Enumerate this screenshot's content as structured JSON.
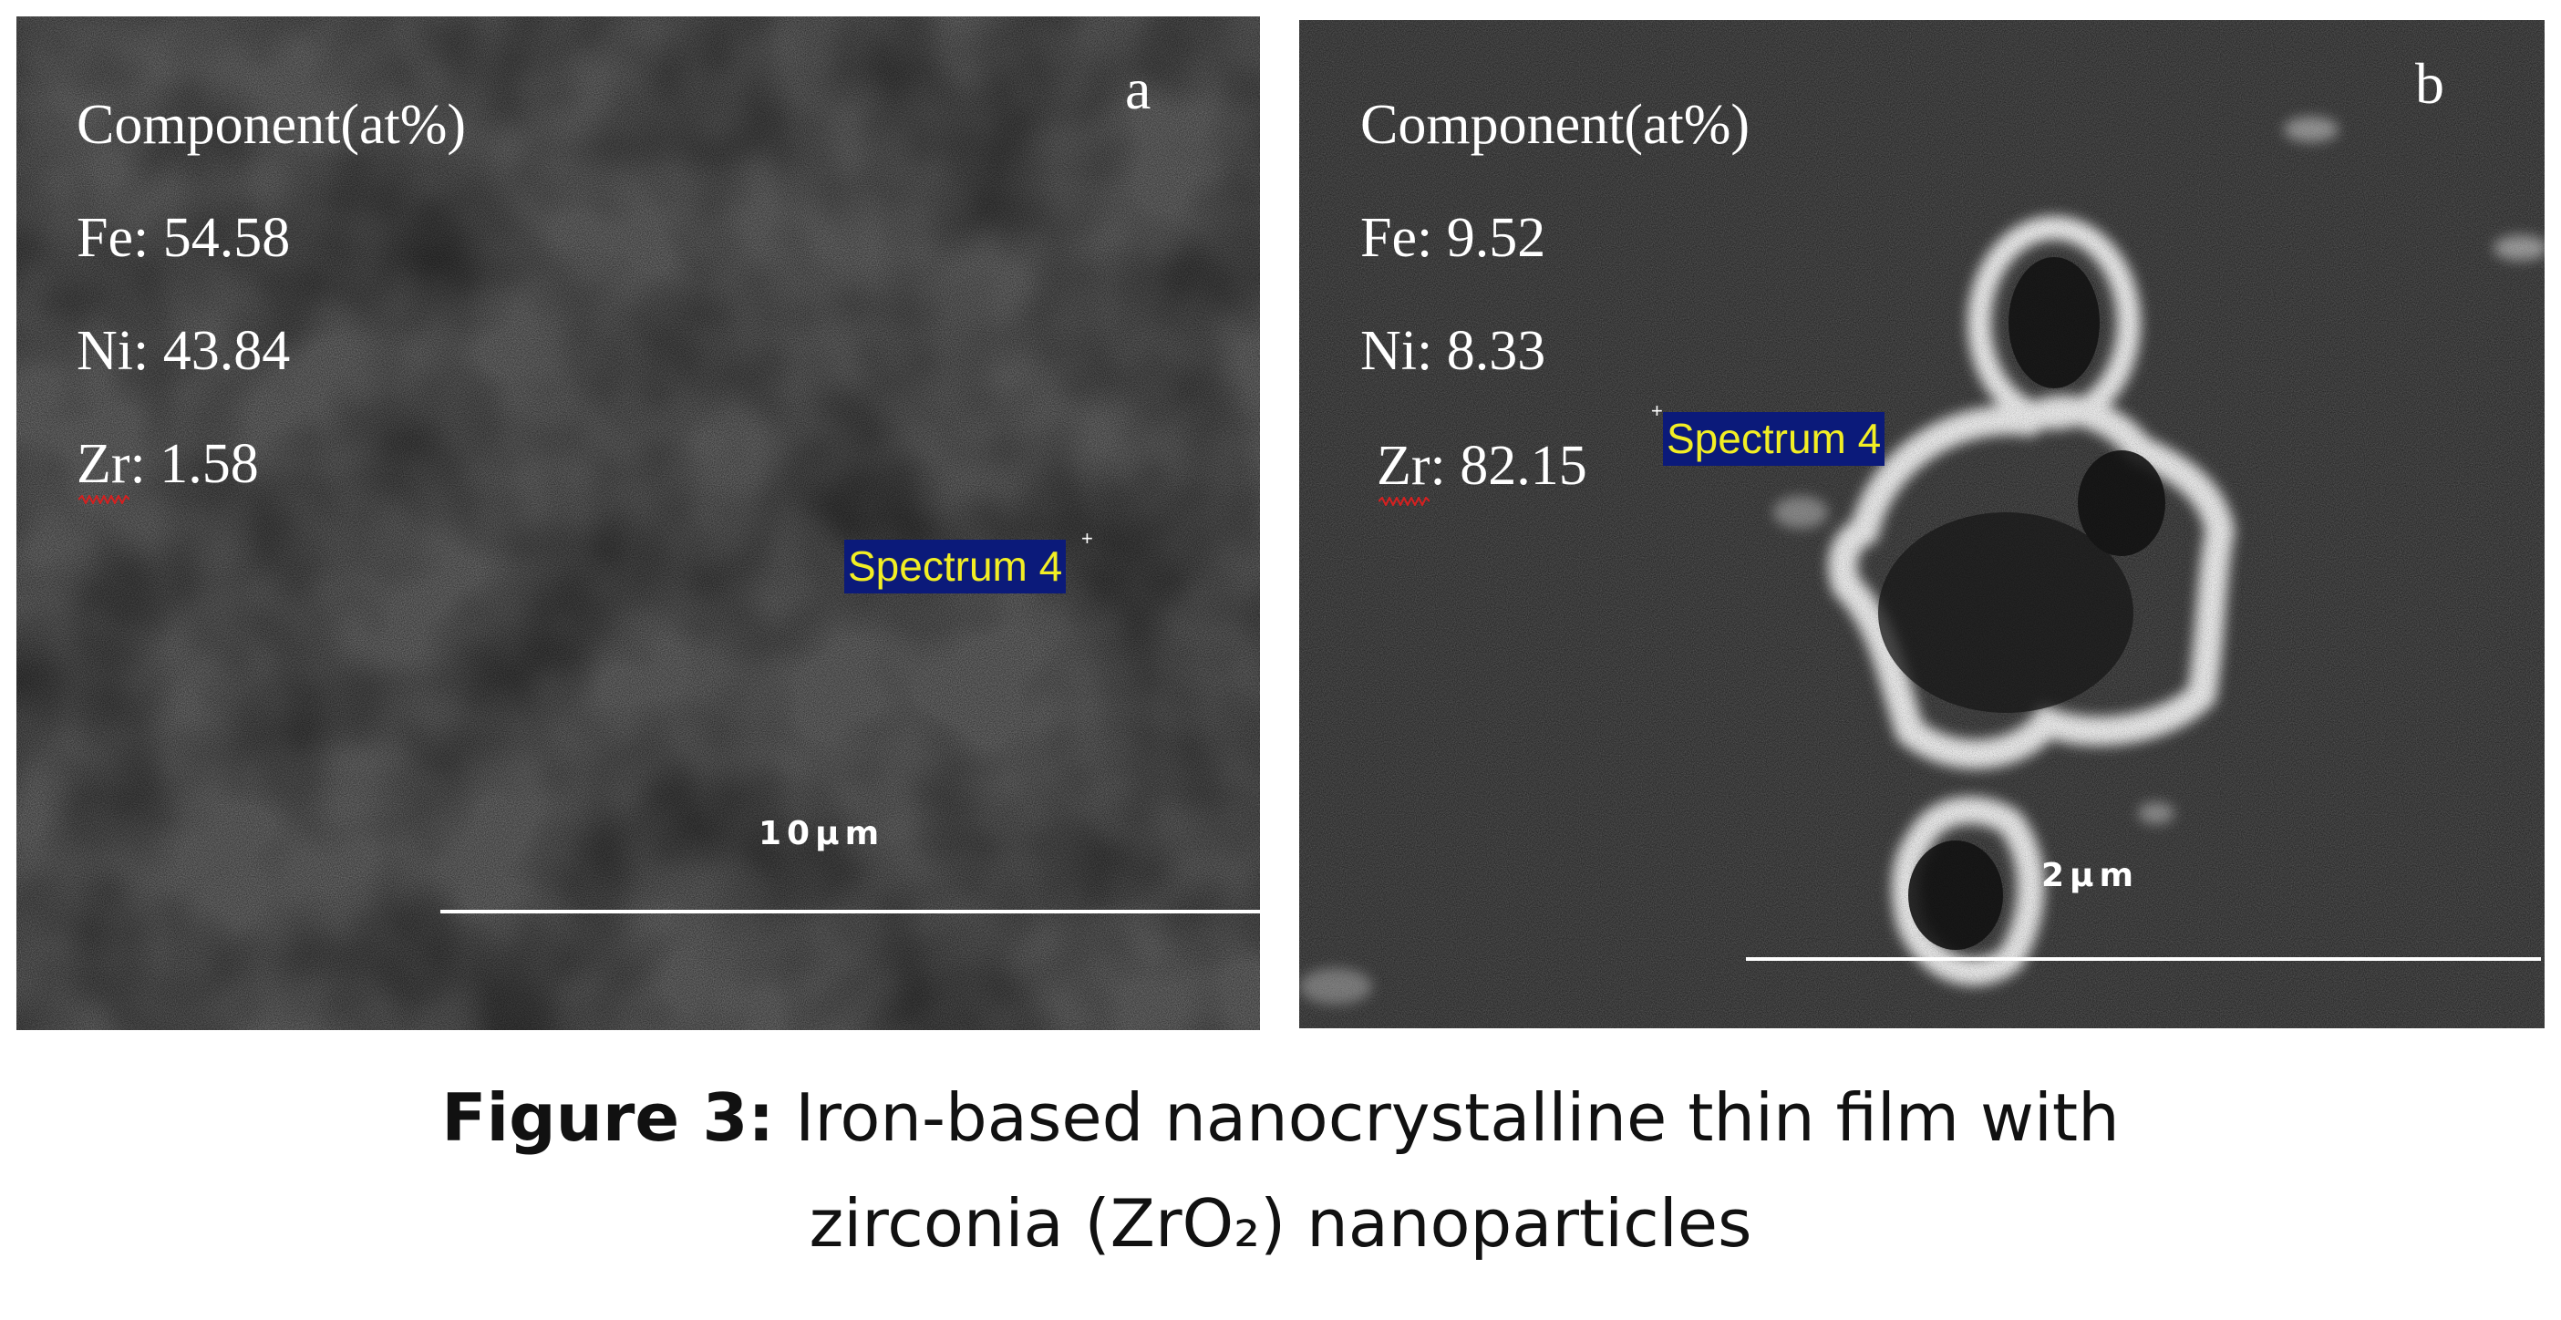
{
  "panel_a": {
    "letter": "a",
    "component_title": "Component(at%)",
    "rows": [
      {
        "label": "Fe",
        "sep": ": ",
        "value": "54.58"
      },
      {
        "label": "Ni",
        "sep": ": ",
        "value": "43.84"
      },
      {
        "label": "Zr",
        "sep": ": ",
        "value": "1.58"
      }
    ],
    "spectrum_label": "Spectrum 4",
    "scale_label": "10μm"
  },
  "panel_b": {
    "letter": "b",
    "component_title": "Component(at%)",
    "rows": [
      {
        "label": "Fe",
        "sep": ": ",
        "value": "9.52"
      },
      {
        "label": "Ni",
        "sep": ": ",
        "value": "8.33"
      },
      {
        "label": "Zr",
        "sep": ": ",
        "value": "82.15"
      }
    ],
    "spectrum_label": "Spectrum 4",
    "scale_label": "2μm"
  },
  "caption": {
    "bold": "Figure 3:",
    "line1": " Iron-based nanocrystalline thin film with",
    "line2": "zirconia (ZrO₂) nanoparticles"
  },
  "colors": {
    "spectrum_label_bg": "#0b1a7a",
    "spectrum_label_text": "#f2ee24"
  }
}
